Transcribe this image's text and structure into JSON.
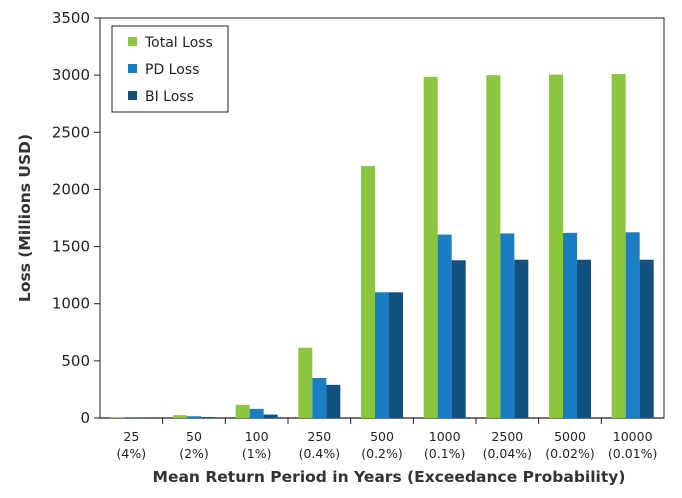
{
  "chart_data": {
    "type": "bar",
    "title": "",
    "xlabel": "Mean Return Period in Years (Exceedance Probability)",
    "ylabel": "Loss (Millions USD)",
    "ylim": [
      0,
      3500
    ],
    "yticks": [
      0,
      500,
      1000,
      1500,
      2000,
      2500,
      3000,
      3500
    ],
    "grid": false,
    "legend_position": "top-left",
    "categories": [
      {
        "line1": "25",
        "line2": "(4%)"
      },
      {
        "line1": "50",
        "line2": "(2%)"
      },
      {
        "line1": "100",
        "line2": "(1%)"
      },
      {
        "line1": "250",
        "line2": "(0.4%)"
      },
      {
        "line1": "500",
        "line2": "(0.2%)"
      },
      {
        "line1": "1000",
        "line2": "(0.1%)"
      },
      {
        "line1": "2500",
        "line2": "(0.04%)"
      },
      {
        "line1": "5000",
        "line2": "(0.02%)"
      },
      {
        "line1": "10000",
        "line2": "(0.01%)"
      }
    ],
    "series": [
      {
        "name": "Total Loss",
        "color": "#8cc63f",
        "values": [
          5,
          25,
          115,
          615,
          2205,
          2985,
          3000,
          3005,
          3010
        ]
      },
      {
        "name": "PD Loss",
        "color": "#1b7dc3",
        "values": [
          2,
          15,
          80,
          350,
          1100,
          1605,
          1615,
          1620,
          1625
        ]
      },
      {
        "name": "BI Loss",
        "color": "#12507f",
        "values": [
          1,
          8,
          30,
          290,
          1100,
          1380,
          1385,
          1385,
          1385
        ]
      }
    ]
  }
}
